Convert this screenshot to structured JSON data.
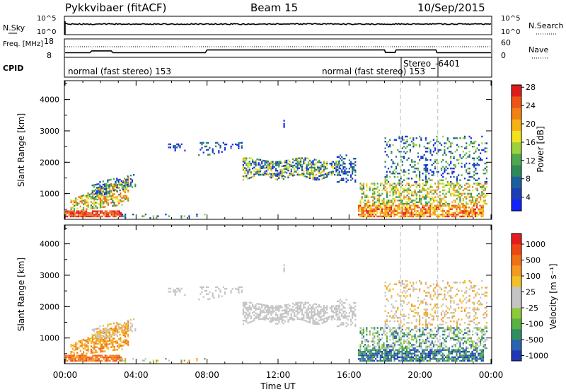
{
  "chart_data": [
    {
      "type": "line",
      "title": "Pykkvibaer (fitACF)",
      "subtitle": "Beam 15",
      "date": "10/Sep/2015",
      "left_label": "N.Sky",
      "right_label": "N.Search",
      "left_ticks": [
        "10^5",
        "10^0"
      ],
      "right_ticks": [
        "10^5",
        "10^0"
      ]
    },
    {
      "type": "line",
      "left_label": "Freq. [MHz]",
      "right_label": "Nave",
      "left_ticks": [
        "18",
        "8"
      ],
      "right_ticks": [
        "60",
        "0"
      ],
      "freq_x": [
        0,
        1.4,
        1.5,
        2.6,
        2.7,
        7.9,
        8.0,
        14.0,
        14.2,
        18.0,
        18.05,
        18.6,
        18.65,
        20.9,
        20.95,
        24
      ],
      "freq_y": [
        10.5,
        10.5,
        11.5,
        11.5,
        10.5,
        10.5,
        12.0,
        12.0,
        12.0,
        12.0,
        10.6,
        10.6,
        12.0,
        12.0,
        10.5,
        10.5
      ]
    },
    {
      "type": "table",
      "label": "CPID",
      "segments": [
        {
          "start": 0.0,
          "end": 18.9,
          "text": "normal (fast stereo) 153"
        },
        {
          "start": 16.8,
          "end": 21.0,
          "text": "normal (fast stereo) 153"
        },
        {
          "start": 18.9,
          "end": 21.0,
          "text": "Stereo_-6401"
        }
      ]
    },
    {
      "type": "heatmap",
      "ylabel": "Slant Range [km]",
      "ylim": [
        180,
        4600
      ],
      "yticks": [
        "1000",
        "2000",
        "3000",
        "4000"
      ],
      "colorbar_label": "Power [dB]",
      "colorbar_ticks": [
        "4",
        "8",
        "12",
        "16",
        "20",
        "24",
        "28"
      ],
      "colorbar_colors": [
        "#1122ff",
        "#1c3fb5",
        "#1e5f9e",
        "#2e8b57",
        "#4fa84f",
        "#9bd13d",
        "#f2e21e",
        "#f4b214",
        "#f08214",
        "#ef5416",
        "#e11b1b"
      ]
    },
    {
      "type": "heatmap",
      "ylabel": "Slant Range [km]",
      "xlabel": "Time UT",
      "ylim": [
        180,
        4600
      ],
      "xlim": [
        0,
        24
      ],
      "yticks": [
        "1000",
        "2000",
        "3000",
        "4000"
      ],
      "xticks": [
        "00:00",
        "04:00",
        "08:00",
        "12:00",
        "16:00",
        "20:00",
        "00:00"
      ],
      "colorbar_label": "Velocity [m s⁻¹]",
      "colorbar_ticks": [
        "1000",
        "500",
        "100",
        "25",
        "-25",
        "-100",
        "-500",
        "-1000"
      ],
      "colorbar_colors": [
        "#2138b6",
        "#2a63b0",
        "#2f8d63",
        "#59b043",
        "#8fc93b",
        "#c4c4c4",
        "#c4c4c4",
        "#f2c02a",
        "#f49a1f",
        "#f07016",
        "#ee4714",
        "#e61b1b"
      ]
    }
  ]
}
